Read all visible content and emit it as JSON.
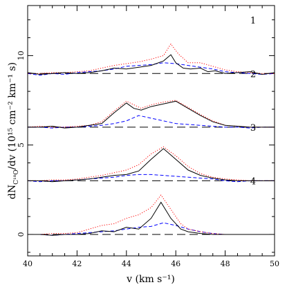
{
  "chart_data": {
    "type": "line",
    "xlabel": "v (km s⁻¹)",
    "ylabel": "dN",
    "ylabel_sub": "C¹⁸O",
    "ylabel_rest": "/dv (10¹⁵ cm⁻² km⁻¹ s)",
    "xlim": [
      40,
      50
    ],
    "ylim": [
      -1.2,
      12.8
    ],
    "x_ticks": [
      40,
      42,
      44,
      46,
      48,
      50
    ],
    "y_ticks": [
      0,
      5,
      10
    ],
    "series_styles": [
      {
        "key": "solid",
        "color": "#000000",
        "dash": ""
      },
      {
        "key": "dashed",
        "color": "#0000ff",
        "dash": "5,3"
      },
      {
        "key": "dotted",
        "color": "#ff0000",
        "dash": "1.2,2.2"
      },
      {
        "key": "baseline",
        "color": "#000000",
        "dash": "12,6"
      }
    ],
    "panels": [
      {
        "label": "1",
        "offset": 9,
        "solid": [
          [
            40,
            0.05
          ],
          [
            40.5,
            -0.05
          ],
          [
            41,
            0.0
          ],
          [
            41.5,
            0.05
          ],
          [
            42,
            0.0
          ],
          [
            42.5,
            0.05
          ],
          [
            43,
            0.15
          ],
          [
            43.5,
            0.3
          ],
          [
            44,
            0.25
          ],
          [
            44.5,
            0.35
          ],
          [
            45,
            0.45
          ],
          [
            45.5,
            0.7
          ],
          [
            45.8,
            1.05
          ],
          [
            46,
            0.6
          ],
          [
            46.3,
            0.3
          ],
          [
            46.6,
            0.25
          ],
          [
            47,
            0.3
          ],
          [
            47.3,
            0.1
          ],
          [
            47.6,
            0.15
          ],
          [
            48,
            0.0
          ],
          [
            48.5,
            0.05
          ],
          [
            49,
            0.1
          ],
          [
            49.5,
            -0.05
          ],
          [
            50,
            0.05
          ]
        ],
        "dashed": [
          [
            40,
            0.0
          ],
          [
            40.5,
            -0.1
          ],
          [
            41,
            0.0
          ],
          [
            41.5,
            -0.05
          ],
          [
            42,
            0.05
          ],
          [
            42.5,
            0.1
          ],
          [
            43,
            0.15
          ],
          [
            43.5,
            0.25
          ],
          [
            44,
            0.4
          ],
          [
            44.5,
            0.45
          ],
          [
            45,
            0.5
          ],
          [
            45.5,
            0.6
          ],
          [
            46,
            0.55
          ],
          [
            46.5,
            0.45
          ],
          [
            47,
            0.35
          ],
          [
            47.5,
            0.25
          ],
          [
            48,
            0.1
          ],
          [
            48.5,
            0.05
          ],
          [
            49,
            0.0
          ],
          [
            49.5,
            -0.05
          ],
          [
            50,
            0.0
          ]
        ],
        "dotted": [
          [
            40,
            0.0
          ],
          [
            40.5,
            0.0
          ],
          [
            41,
            0.05
          ],
          [
            41.5,
            0.05
          ],
          [
            42,
            0.1
          ],
          [
            42.5,
            0.15
          ],
          [
            43,
            0.3
          ],
          [
            43.5,
            0.45
          ],
          [
            44,
            0.55
          ],
          [
            44.5,
            0.65
          ],
          [
            45,
            0.8
          ],
          [
            45.5,
            1.0
          ],
          [
            45.8,
            1.65
          ],
          [
            46.1,
            1.1
          ],
          [
            46.5,
            0.6
          ],
          [
            47,
            0.6
          ],
          [
            47.5,
            0.4
          ],
          [
            48,
            0.2
          ],
          [
            48.5,
            0.1
          ],
          [
            49,
            0.05
          ],
          [
            49.5,
            0.0
          ],
          [
            50,
            0.0
          ]
        ]
      },
      {
        "label": "2",
        "offset": 6,
        "solid": [
          [
            40,
            0.0
          ],
          [
            40.5,
            0.0
          ],
          [
            41,
            0.05
          ],
          [
            41.5,
            -0.05
          ],
          [
            42,
            0.0
          ],
          [
            42.5,
            0.1
          ],
          [
            43,
            0.2
          ],
          [
            43.5,
            0.8
          ],
          [
            44,
            1.35
          ],
          [
            44.3,
            1.05
          ],
          [
            44.6,
            0.95
          ],
          [
            45,
            1.15
          ],
          [
            45.5,
            1.3
          ],
          [
            46,
            1.45
          ],
          [
            46.5,
            1.05
          ],
          [
            47,
            0.65
          ],
          [
            47.5,
            0.3
          ],
          [
            48,
            0.1
          ],
          [
            48.5,
            0.05
          ],
          [
            49,
            0.0
          ],
          [
            49.5,
            0.0
          ],
          [
            50,
            0.0
          ]
        ],
        "dashed": [
          [
            40,
            0.0
          ],
          [
            40.5,
            0.0
          ],
          [
            41,
            -0.05
          ],
          [
            41.5,
            0.0
          ],
          [
            42,
            0.0
          ],
          [
            42.5,
            0.05
          ],
          [
            43,
            0.1
          ],
          [
            43.5,
            0.2
          ],
          [
            44,
            0.35
          ],
          [
            44.5,
            0.65
          ],
          [
            45,
            0.5
          ],
          [
            45.5,
            0.35
          ],
          [
            46,
            0.2
          ],
          [
            46.5,
            0.15
          ],
          [
            47,
            0.1
          ],
          [
            47.5,
            0.05
          ],
          [
            48,
            0.0
          ],
          [
            48.5,
            0.0
          ],
          [
            49,
            -0.05
          ],
          [
            49.5,
            0.0
          ],
          [
            50,
            0.0
          ]
        ],
        "dotted": [
          [
            40,
            0.0
          ],
          [
            40.5,
            0.05
          ],
          [
            41,
            0.0
          ],
          [
            41.5,
            0.0
          ],
          [
            42,
            0.05
          ],
          [
            42.5,
            0.1
          ],
          [
            43,
            0.3
          ],
          [
            43.5,
            0.9
          ],
          [
            44,
            1.45
          ],
          [
            44.3,
            1.25
          ],
          [
            44.6,
            1.05
          ],
          [
            45,
            1.25
          ],
          [
            45.5,
            1.4
          ],
          [
            46,
            1.5
          ],
          [
            46.5,
            1.1
          ],
          [
            47,
            0.7
          ],
          [
            47.5,
            0.35
          ],
          [
            48,
            0.1
          ],
          [
            48.5,
            0.05
          ],
          [
            49,
            0.0
          ],
          [
            49.5,
            0.0
          ],
          [
            50,
            0.0
          ]
        ]
      },
      {
        "label": "3",
        "offset": 3,
        "solid": [
          [
            40,
            0.0
          ],
          [
            40.5,
            0.0
          ],
          [
            41,
            -0.05
          ],
          [
            41.5,
            0.0
          ],
          [
            42,
            0.05
          ],
          [
            42.5,
            0.1
          ],
          [
            43,
            0.2
          ],
          [
            43.5,
            0.3
          ],
          [
            44,
            0.35
          ],
          [
            44.5,
            0.55
          ],
          [
            45,
            1.2
          ],
          [
            45.5,
            1.8
          ],
          [
            46,
            1.2
          ],
          [
            46.5,
            0.6
          ],
          [
            47,
            0.3
          ],
          [
            47.5,
            0.15
          ],
          [
            48,
            0.05
          ],
          [
            48.5,
            0.0
          ],
          [
            49,
            0.0
          ],
          [
            49.5,
            0.0
          ],
          [
            50,
            0.0
          ]
        ],
        "dashed": [
          [
            40,
            0.0
          ],
          [
            40.5,
            -0.05
          ],
          [
            41,
            0.0
          ],
          [
            41.5,
            0.0
          ],
          [
            42,
            0.05
          ],
          [
            42.5,
            0.1
          ],
          [
            43,
            0.15
          ],
          [
            43.5,
            0.2
          ],
          [
            44,
            0.3
          ],
          [
            44.5,
            0.35
          ],
          [
            45,
            0.35
          ],
          [
            45.5,
            0.3
          ],
          [
            46,
            0.25
          ],
          [
            46.5,
            0.2
          ],
          [
            47,
            0.15
          ],
          [
            47.5,
            0.1
          ],
          [
            48,
            0.0
          ],
          [
            48.5,
            -0.05
          ],
          [
            49,
            0.0
          ],
          [
            49.5,
            0.0
          ],
          [
            50,
            0.0
          ]
        ],
        "dotted": [
          [
            40,
            0.0
          ],
          [
            40.5,
            0.0
          ],
          [
            41,
            0.05
          ],
          [
            41.5,
            0.05
          ],
          [
            42,
            0.1
          ],
          [
            42.5,
            0.2
          ],
          [
            43,
            0.3
          ],
          [
            43.5,
            0.45
          ],
          [
            44,
            0.6
          ],
          [
            44.5,
            0.9
          ],
          [
            45,
            1.5
          ],
          [
            45.5,
            1.9
          ],
          [
            46,
            1.4
          ],
          [
            46.5,
            0.8
          ],
          [
            47,
            0.4
          ],
          [
            47.5,
            0.2
          ],
          [
            48,
            0.1
          ],
          [
            48.5,
            0.05
          ],
          [
            49,
            0.0
          ],
          [
            49.5,
            0.0
          ],
          [
            50,
            0.0
          ]
        ]
      },
      {
        "label": "4",
        "offset": 0,
        "solid": [
          [
            40,
            0.0
          ],
          [
            40.5,
            0.0
          ],
          [
            41,
            -0.05
          ],
          [
            41.5,
            0.0
          ],
          [
            42,
            0.0
          ],
          [
            42.5,
            0.05
          ],
          [
            43,
            0.2
          ],
          [
            43.5,
            0.15
          ],
          [
            44,
            0.4
          ],
          [
            44.5,
            0.3
          ],
          [
            45,
            0.9
          ],
          [
            45.4,
            1.8
          ],
          [
            45.8,
            0.9
          ],
          [
            46.2,
            0.3
          ],
          [
            46.5,
            0.15
          ],
          [
            47,
            0.05
          ],
          [
            47.5,
            0.0
          ],
          [
            48,
            0.0
          ],
          [
            48.5,
            0.0
          ],
          [
            49,
            0.0
          ],
          [
            49.5,
            0.0
          ],
          [
            50,
            0.0
          ]
        ],
        "dashed": [
          [
            40,
            0.0
          ],
          [
            40.5,
            0.0
          ],
          [
            41,
            -0.05
          ],
          [
            41.5,
            0.0
          ],
          [
            42,
            0.05
          ],
          [
            42.5,
            0.1
          ],
          [
            43,
            0.15
          ],
          [
            43.5,
            0.2
          ],
          [
            44,
            0.3
          ],
          [
            44.5,
            0.4
          ],
          [
            45,
            0.45
          ],
          [
            45.5,
            0.65
          ],
          [
            46,
            0.5
          ],
          [
            46.5,
            0.3
          ],
          [
            47,
            0.15
          ],
          [
            47.5,
            0.05
          ],
          [
            48,
            0.0
          ],
          [
            48.5,
            0.0
          ],
          [
            49,
            0.0
          ],
          [
            49.5,
            0.0
          ],
          [
            50,
            0.0
          ]
        ],
        "dotted": [
          [
            40,
            0.0
          ],
          [
            40.5,
            0.0
          ],
          [
            41,
            0.05
          ],
          [
            41.5,
            0.05
          ],
          [
            42,
            0.1
          ],
          [
            42.5,
            0.3
          ],
          [
            43,
            0.5
          ],
          [
            43.5,
            0.6
          ],
          [
            44,
            0.9
          ],
          [
            44.5,
            1.1
          ],
          [
            45,
            1.5
          ],
          [
            45.4,
            2.2
          ],
          [
            45.8,
            1.4
          ],
          [
            46.2,
            0.6
          ],
          [
            46.5,
            0.3
          ],
          [
            47,
            0.15
          ],
          [
            47.5,
            0.05
          ],
          [
            48,
            0.0
          ],
          [
            48.5,
            0.0
          ],
          [
            49,
            0.0
          ],
          [
            49.5,
            0.0
          ],
          [
            50,
            0.0
          ]
        ]
      }
    ]
  }
}
